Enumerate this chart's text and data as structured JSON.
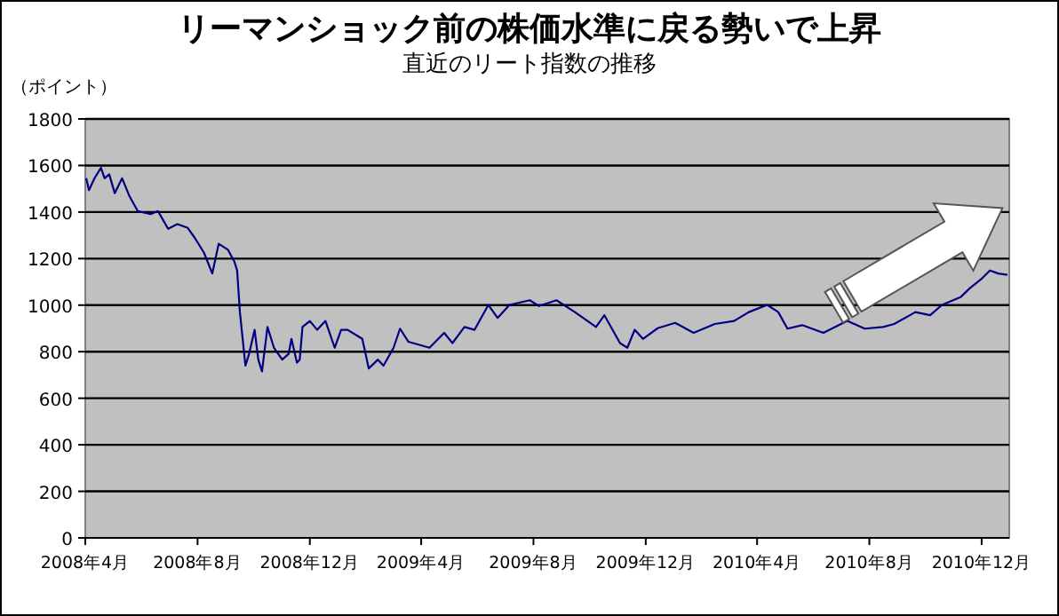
{
  "chart_data": {
    "type": "line",
    "title": "リーマンショック前の株価水準に戻る勢いで上昇",
    "subtitle": "直近のリート指数の推移",
    "ylabel": "（ポイント）",
    "series": [
      {
        "color": "#000080",
        "x": [
          "2008-04-02",
          "2008-04-05",
          "2008-04-11",
          "2008-04-18",
          "2008-04-22",
          "2008-04-27",
          "2008-05-03",
          "2008-05-11",
          "2008-05-19",
          "2008-05-28",
          "2008-06-11",
          "2008-06-19",
          "2008-06-30",
          "2008-07-10",
          "2008-07-21",
          "2008-07-29",
          "2008-08-08",
          "2008-08-17",
          "2008-08-24",
          "2008-09-03",
          "2008-09-10",
          "2008-09-13",
          "2008-09-16",
          "2008-09-22",
          "2008-09-26",
          "2008-10-02",
          "2008-10-06",
          "2008-10-10",
          "2008-10-16",
          "2008-10-23",
          "2008-11-01",
          "2008-11-08",
          "2008-11-11",
          "2008-11-17",
          "2008-11-20",
          "2008-11-23",
          "2008-12-01",
          "2008-12-09",
          "2008-12-18",
          "2008-12-28",
          "2009-01-04",
          "2009-01-11",
          "2009-01-27",
          "2009-02-03",
          "2009-02-13",
          "2009-02-19",
          "2009-03-02",
          "2009-03-09",
          "2009-03-18",
          "2009-04-10",
          "2009-04-26",
          "2009-05-05",
          "2009-05-18",
          "2009-05-29",
          "2009-06-13",
          "2009-06-23",
          "2009-07-06",
          "2009-07-28",
          "2009-08-07",
          "2009-08-26",
          "2009-09-15",
          "2009-10-08",
          "2009-10-17",
          "2009-11-03",
          "2009-11-11",
          "2009-11-19",
          "2009-11-28",
          "2009-12-14",
          "2010-01-02",
          "2010-01-22",
          "2010-02-14",
          "2010-03-07",
          "2010-03-23",
          "2010-04-12",
          "2010-04-24",
          "2010-05-04",
          "2010-05-20",
          "2010-06-12",
          "2010-07-08",
          "2010-07-27",
          "2010-08-16",
          "2010-08-28",
          "2010-09-20",
          "2010-10-06",
          "2010-10-19",
          "2010-11-08",
          "2010-11-18",
          "2010-11-30",
          "2010-12-10",
          "2010-12-19",
          "2010-12-29"
        ],
        "values": [
          1545,
          1494,
          1545,
          1590,
          1545,
          1562,
          1481,
          1545,
          1468,
          1404,
          1391,
          1404,
          1328,
          1348,
          1333,
          1289,
          1225,
          1136,
          1264,
          1238,
          1187,
          1149,
          970,
          740,
          791,
          894,
          766,
          715,
          906,
          817,
          766,
          791,
          855,
          753,
          766,
          906,
          932,
          894,
          932,
          817,
          894,
          894,
          855,
          728,
          766,
          740,
          817,
          899,
          843,
          817,
          881,
          837,
          906,
          894,
          1001,
          945,
          1001,
          1021,
          996,
          1021,
          970,
          906,
          957,
          837,
          817,
          894,
          855,
          901,
          924,
          881,
          919,
          932,
          970,
          1001,
          970,
          899,
          914,
          881,
          932,
          899,
          906,
          919,
          970,
          957,
          1001,
          1034,
          1072,
          1110,
          1149,
          1136,
          1130
        ]
      }
    ],
    "xlim": [
      "2008-04-01",
      "2010-12-31"
    ],
    "xticks": [
      {
        "value": "2008-04",
        "label": "2008年4月"
      },
      {
        "value": "2008-08",
        "label": "2008年8月"
      },
      {
        "value": "2008-12",
        "label": "2008年12月"
      },
      {
        "value": "2009-04",
        "label": "2009年4月"
      },
      {
        "value": "2009-08",
        "label": "2009年8月"
      },
      {
        "value": "2009-12",
        "label": "2009年12月"
      },
      {
        "value": "2010-04",
        "label": "2010年4月"
      },
      {
        "value": "2010-08",
        "label": "2010年8月"
      },
      {
        "value": "2010-12",
        "label": "2010年12月"
      }
    ],
    "ylim": [
      0,
      1800
    ],
    "yticks": [
      0,
      200,
      400,
      600,
      800,
      1000,
      1200,
      1400,
      1600,
      1800
    ],
    "grid": "y"
  }
}
